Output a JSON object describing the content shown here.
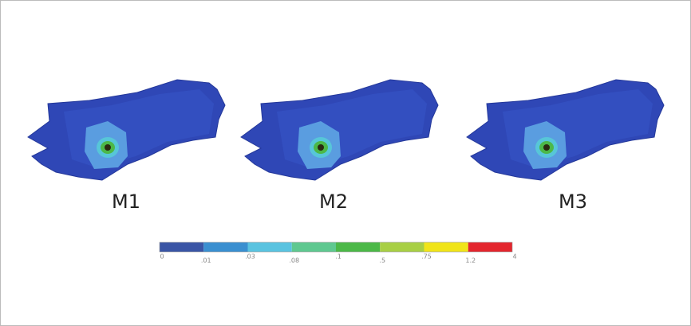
{
  "panels": [
    {
      "label": "M1"
    },
    {
      "label": "M2"
    },
    {
      "label": "M3"
    }
  ],
  "colorbar": {
    "colors": [
      "#3a55a5",
      "#3a8fd0",
      "#5ac3e0",
      "#5fc890",
      "#4cb848",
      "#a8cf45",
      "#f0e41a",
      "#e3262e"
    ],
    "labels": [
      "0",
      ".01",
      ".03",
      ".08",
      ".1",
      ".5",
      ".75",
      "1.2",
      "4"
    ]
  }
}
